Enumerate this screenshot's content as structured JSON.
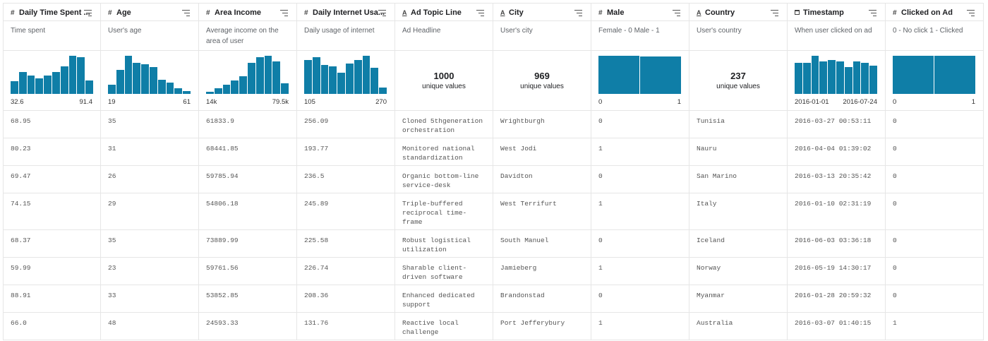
{
  "columns": [
    {
      "kind": "number",
      "name": "Daily Time Spent ...",
      "description": "Time spent",
      "summary": {
        "bars": [
          18,
          30,
          26,
          22,
          26,
          30,
          38,
          53,
          51,
          19
        ],
        "min_label": "32.6",
        "max_label": "91.4"
      }
    },
    {
      "kind": "number",
      "name": "Age",
      "description": "User's age",
      "summary": {
        "bars": [
          13,
          34,
          54,
          44,
          42,
          38,
          20,
          16,
          8,
          4
        ],
        "min_label": "19",
        "max_label": "61"
      }
    },
    {
      "kind": "number",
      "name": "Area Income",
      "description": "Average income on the area of user",
      "summary": {
        "bars": [
          3,
          8,
          13,
          18,
          24,
          42,
          50,
          52,
          44,
          14
        ],
        "min_label": "14k",
        "max_label": "79.5k"
      }
    },
    {
      "kind": "number",
      "name": "Daily Internet Usa...",
      "description": "Daily usage of internet",
      "summary": {
        "bars": [
          44,
          48,
          38,
          36,
          28,
          40,
          44,
          50,
          34,
          8
        ],
        "min_label": "105",
        "max_label": "270"
      }
    },
    {
      "kind": "string",
      "name": "Ad Topic Line",
      "description": "Ad Headline",
      "summary": {
        "unique": "1000",
        "unique_label": "unique values"
      }
    },
    {
      "kind": "string",
      "name": "City",
      "description": "User's city",
      "summary": {
        "unique": "969",
        "unique_label": "unique values"
      }
    },
    {
      "kind": "number",
      "name": "Male",
      "description": "Female - 0 Male - 1",
      "summary": {
        "bars": [
          54,
          53
        ],
        "min_label": "0",
        "max_label": "1"
      }
    },
    {
      "kind": "string",
      "name": "Country",
      "description": "User's country",
      "summary": {
        "unique": "237",
        "unique_label": "unique values"
      }
    },
    {
      "kind": "date",
      "name": "Timestamp",
      "description": "When user clicked on ad",
      "summary": {
        "bars": [
          44,
          44,
          54,
          46,
          48,
          46,
          38,
          46,
          44,
          40
        ],
        "min_label": "2016-01-01",
        "max_label": "2016-07-24"
      }
    },
    {
      "kind": "number",
      "name": "Clicked on Ad",
      "description": "0 - No click 1 - Clicked",
      "summary": {
        "bars": [
          54,
          54
        ],
        "min_label": "0",
        "max_label": "1"
      }
    }
  ],
  "rows": [
    [
      "68.95",
      "35",
      "61833.9",
      "256.09",
      "Cloned 5thgeneration orchestration",
      "Wrightburgh",
      "0",
      "Tunisia",
      "2016-03-27 00:53:11",
      "0"
    ],
    [
      "80.23",
      "31",
      "68441.85",
      "193.77",
      "Monitored national standardization",
      "West Jodi",
      "1",
      "Nauru",
      "2016-04-04 01:39:02",
      "0"
    ],
    [
      "69.47",
      "26",
      "59785.94",
      "236.5",
      "Organic bottom-line service-desk",
      "Davidton",
      "0",
      "San Marino",
      "2016-03-13 20:35:42",
      "0"
    ],
    [
      "74.15",
      "29",
      "54806.18",
      "245.89",
      "Triple-buffered reciprocal time-frame",
      "West Terrifurt",
      "1",
      "Italy",
      "2016-01-10 02:31:19",
      "0"
    ],
    [
      "68.37",
      "35",
      "73889.99",
      "225.58",
      "Robust logistical utilization",
      "South Manuel",
      "0",
      "Iceland",
      "2016-06-03 03:36:18",
      "0"
    ],
    [
      "59.99",
      "23",
      "59761.56",
      "226.74",
      "Sharable client-driven software",
      "Jamieberg",
      "1",
      "Norway",
      "2016-05-19 14:30:17",
      "0"
    ],
    [
      "88.91",
      "33",
      "53852.85",
      "208.36",
      "Enhanced dedicated support",
      "Brandonstad",
      "0",
      "Myanmar",
      "2016-01-28 20:59:32",
      "0"
    ],
    [
      "66.0",
      "48",
      "24593.33",
      "131.76",
      "Reactive local challenge",
      "Port Jefferybury",
      "1",
      "Australia",
      "2016-03-07 01:40:15",
      "1"
    ]
  ]
}
